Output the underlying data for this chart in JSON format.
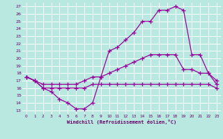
{
  "xlabel": "Windchill (Refroidissement éolien,°C)",
  "ylabel_ticks": [
    13,
    14,
    15,
    16,
    17,
    18,
    19,
    20,
    21,
    22,
    23,
    24,
    25,
    26,
    27
  ],
  "x_ticks": [
    0,
    1,
    2,
    3,
    4,
    5,
    6,
    7,
    8,
    9,
    10,
    11,
    12,
    13,
    14,
    15,
    16,
    17,
    18,
    19,
    20,
    21,
    22,
    23
  ],
  "xlim": [
    -0.5,
    23.5
  ],
  "ylim": [
    12.5,
    27.5
  ],
  "bg_color": "#b8e8e0",
  "grid_color": "#ffffff",
  "line_color": "#990099",
  "marker": "+",
  "marker_size": 4,
  "line_width": 0.9,
  "series": {
    "main": {
      "x": [
        0,
        1,
        2,
        3,
        4,
        5,
        6,
        7,
        8,
        9,
        10,
        11,
        12,
        13,
        14,
        15,
        16,
        17,
        18,
        19,
        20,
        21,
        22,
        23
      ],
      "y": [
        17.5,
        17.0,
        16.0,
        15.5,
        14.5,
        14.0,
        13.2,
        13.2,
        14.0,
        17.5,
        21.0,
        21.5,
        22.5,
        23.5,
        25.0,
        25.0,
        26.5,
        26.5,
        27.0,
        26.5,
        20.5,
        20.5,
        18.0,
        17.0
      ]
    },
    "upper": {
      "x": [
        0,
        1,
        2,
        3,
        4,
        5,
        6,
        7,
        8,
        9,
        10,
        11,
        12,
        13,
        14,
        15,
        16,
        17,
        18,
        19,
        20,
        21,
        22,
        23
      ],
      "y": [
        17.5,
        17.0,
        16.5,
        16.5,
        16.5,
        16.5,
        16.5,
        17.0,
        17.5,
        17.5,
        18.0,
        18.5,
        19.0,
        19.5,
        20.0,
        20.5,
        20.5,
        20.5,
        20.5,
        18.5,
        18.5,
        18.0,
        18.0,
        16.5
      ]
    },
    "lower": {
      "x": [
        0,
        1,
        2,
        3,
        4,
        5,
        6,
        7,
        8,
        9,
        10,
        11,
        12,
        13,
        14,
        15,
        16,
        17,
        18,
        19,
        20,
        21,
        22,
        23
      ],
      "y": [
        17.5,
        17.0,
        16.0,
        16.0,
        16.0,
        16.0,
        16.0,
        16.0,
        16.5,
        16.5,
        16.5,
        16.5,
        16.5,
        16.5,
        16.5,
        16.5,
        16.5,
        16.5,
        16.5,
        16.5,
        16.5,
        16.5,
        16.5,
        16.0
      ]
    }
  }
}
